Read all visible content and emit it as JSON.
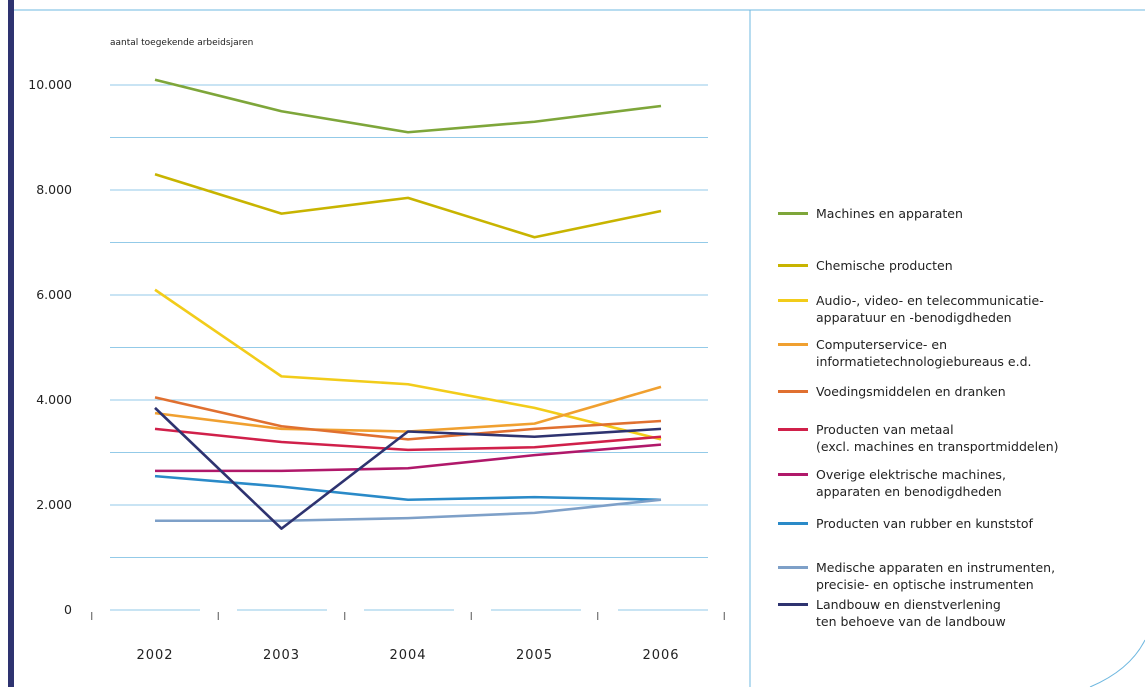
{
  "chart_data": {
    "type": "line",
    "ylabel": "aantal toegekende arbeidsjaren",
    "categories": [
      "2002",
      "2003",
      "2004",
      "2005",
      "2006"
    ],
    "ylim": [
      0,
      10000
    ],
    "yticks": [
      {
        "value": 0,
        "label": "0"
      },
      {
        "value": 2000,
        "label": "2.000"
      },
      {
        "value": 4000,
        "label": "4.000"
      },
      {
        "value": 6000,
        "label": "6.000"
      },
      {
        "value": 8000,
        "label": "8.000"
      },
      {
        "value": 10000,
        "label": "10.000"
      }
    ],
    "minor_yticks": [
      1000,
      3000,
      5000,
      7000,
      9000
    ],
    "grid": true,
    "series": [
      {
        "name": "Machines en apparaten",
        "color": "#7ea63a",
        "values": [
          10100,
          9500,
          9100,
          9300,
          9600
        ]
      },
      {
        "name": "Chemische producten",
        "color": "#c8b400",
        "values": [
          8300,
          7550,
          7850,
          7100,
          7600
        ]
      },
      {
        "name": "Audio-, video- en telecommunicatie-\napparatuur en -benodigdheden",
        "color": "#f2cc1a",
        "values": [
          6100,
          4450,
          4300,
          3850,
          3250
        ]
      },
      {
        "name": "Computerservice- en\ninformatietechnologiebureaus e.d.",
        "color": "#f0a030",
        "values": [
          3750,
          3450,
          3400,
          3550,
          4250
        ]
      },
      {
        "name": "Voedingsmiddelen en dranken",
        "color": "#e07030",
        "values": [
          4050,
          3500,
          3250,
          3450,
          3600
        ]
      },
      {
        "name": "Producten van metaal\n(excl. machines en transportmiddelen)",
        "color": "#d0204a",
        "values": [
          3450,
          3200,
          3050,
          3100,
          3300
        ]
      },
      {
        "name": "Overige elektrische machines,\napparaten en benodigdheden",
        "color": "#b0186a",
        "values": [
          2650,
          2650,
          2700,
          2950,
          3150
        ]
      },
      {
        "name": "Producten van rubber en kunststof",
        "color": "#2a8ac8",
        "values": [
          2550,
          2350,
          2100,
          2150,
          2100
        ]
      },
      {
        "name": "Medische apparaten en instrumenten,\nprecisie- en optische instrumenten",
        "color": "#7ea0c8",
        "values": [
          1700,
          1700,
          1750,
          1850,
          2100
        ]
      },
      {
        "name": "Landbouw en dienstverlening\nten behoeve van de landbouw",
        "color": "#2e3370",
        "values": [
          3850,
          1550,
          3400,
          3300,
          3450
        ]
      }
    ]
  }
}
